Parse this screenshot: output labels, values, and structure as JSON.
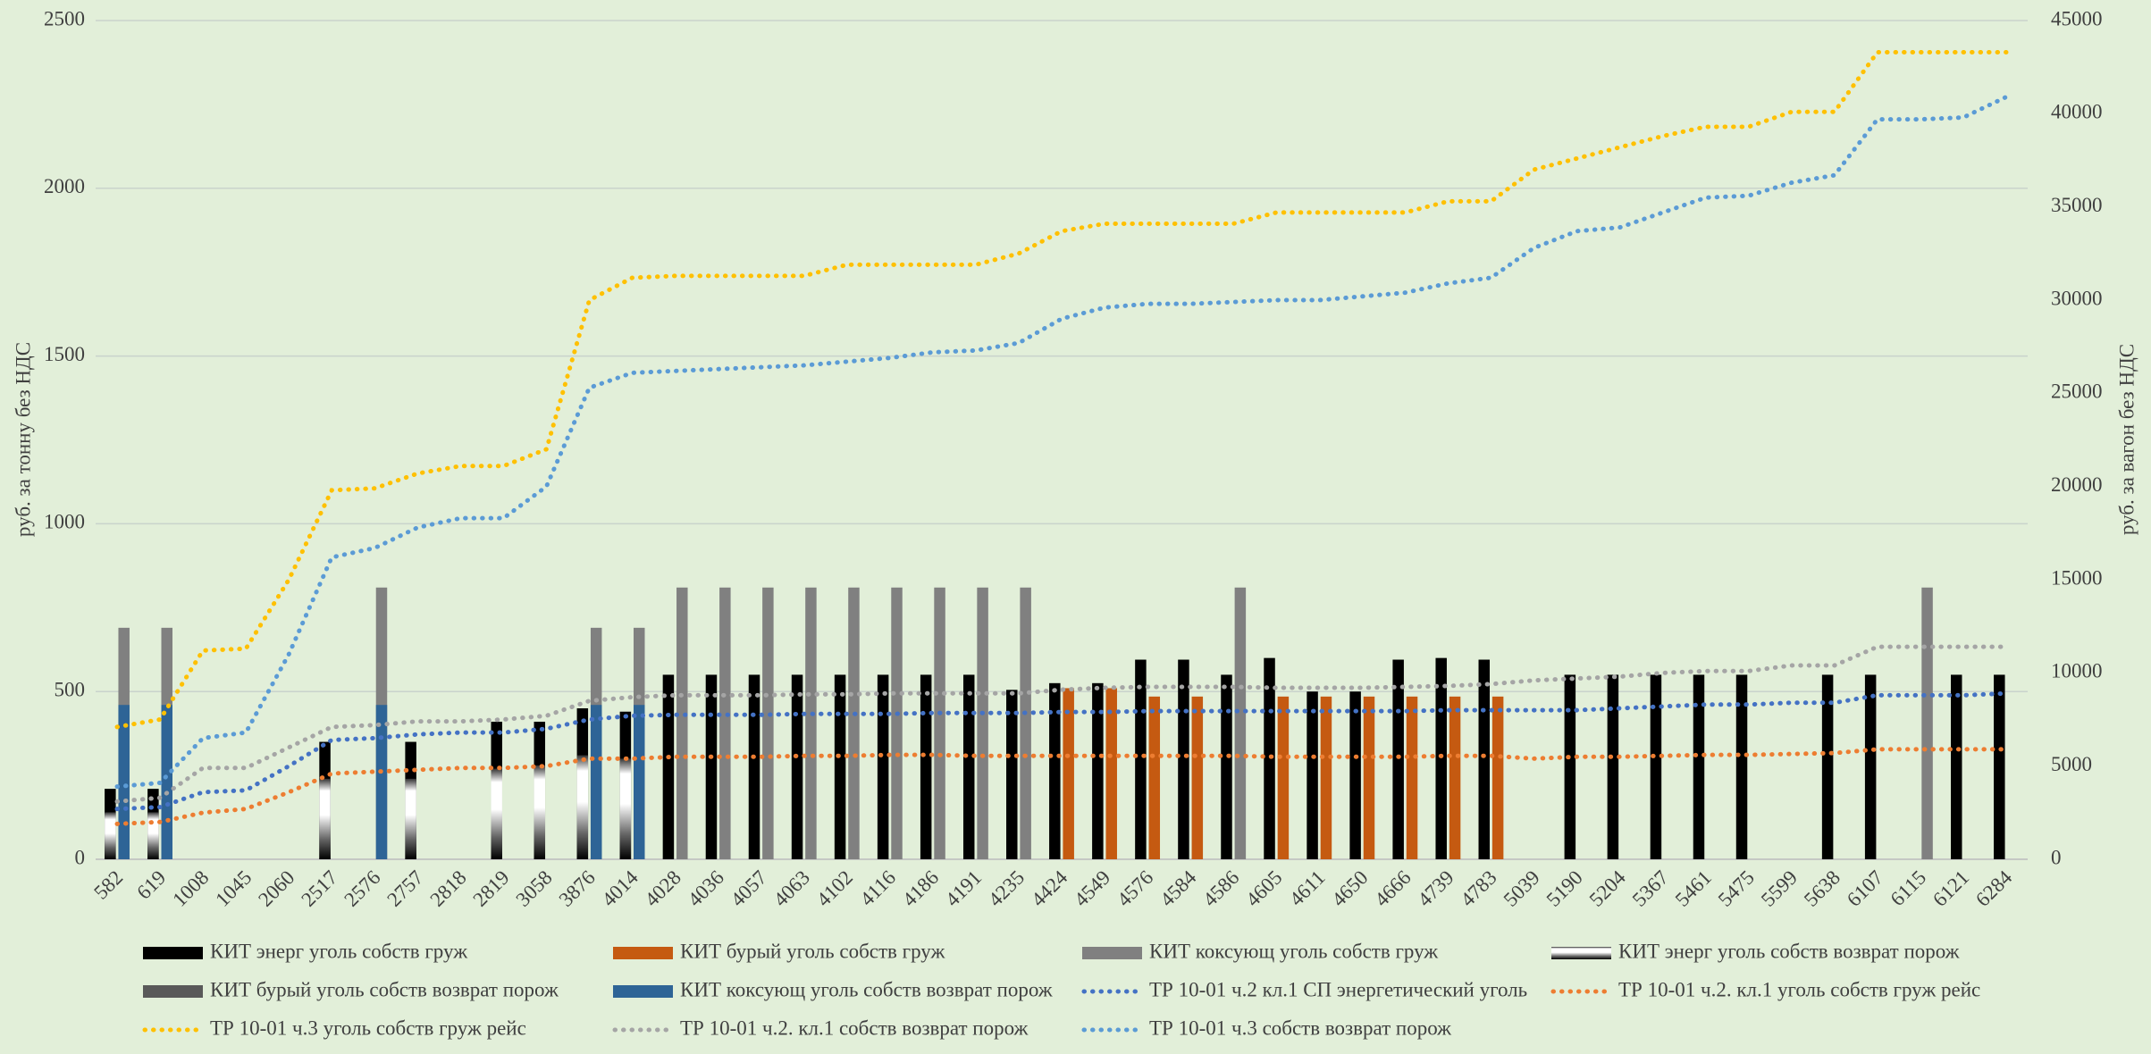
{
  "chart_data": {
    "type": "bar",
    "y_axis_label": "руб. за тонну без НДС",
    "y2_axis_label": "руб. за вагон без НДС",
    "categories": [
      "582",
      "619",
      "1008",
      "1045",
      "2060",
      "2517",
      "2576",
      "2757",
      "2818",
      "2819",
      "3058",
      "3876",
      "4014",
      "4028",
      "4036",
      "4057",
      "4063",
      "4102",
      "4116",
      "4186",
      "4191",
      "4235",
      "4424",
      "4549",
      "4576",
      "4584",
      "4586",
      "4605",
      "4611",
      "4650",
      "4666",
      "4739",
      "4783",
      "5039",
      "5190",
      "5204",
      "5367",
      "5461",
      "5475",
      "5599",
      "5638",
      "6107",
      "6115",
      "6121",
      "6284"
    ],
    "ylim": [
      0,
      2500
    ],
    "yticks": [
      0,
      500,
      1000,
      1500,
      2000,
      2500
    ],
    "y2lim": [
      0,
      45000
    ],
    "y2ticks": [
      0,
      5000,
      10000,
      15000,
      20000,
      25000,
      30000,
      35000,
      40000,
      45000
    ],
    "grid": true,
    "legend": "bottom",
    "series": [
      {
        "name": "КИТ энерг уголь собств груж",
        "kind": "bar",
        "color": "#000000",
        "values": [
          210,
          210,
          null,
          null,
          null,
          350,
          null,
          350,
          null,
          410,
          410,
          450,
          440,
          550,
          550,
          550,
          550,
          550,
          550,
          550,
          550,
          505,
          525,
          525,
          595,
          595,
          550,
          600,
          500,
          500,
          595,
          600,
          595,
          null,
          550,
          550,
          550,
          550,
          550,
          null,
          550,
          550,
          null,
          550,
          550
        ]
      },
      {
        "name": "КИТ бурый уголь собств груж",
        "kind": "bar",
        "color": "#c55a11",
        "values": [
          null,
          null,
          null,
          null,
          null,
          null,
          null,
          null,
          null,
          null,
          null,
          null,
          null,
          null,
          null,
          null,
          null,
          null,
          null,
          null,
          null,
          null,
          510,
          510,
          485,
          485,
          null,
          485,
          485,
          485,
          485,
          485,
          485,
          null,
          null,
          null,
          null,
          null,
          null,
          null,
          null,
          null,
          null,
          null,
          null
        ]
      },
      {
        "name": "КИТ коксующ уголь собств груж",
        "kind": "bar",
        "color": "#808080",
        "values": [
          690,
          690,
          null,
          null,
          null,
          null,
          810,
          null,
          null,
          null,
          null,
          690,
          690,
          810,
          810,
          810,
          810,
          810,
          810,
          810,
          810,
          810,
          null,
          null,
          null,
          null,
          810,
          null,
          null,
          null,
          null,
          null,
          null,
          null,
          null,
          null,
          null,
          null,
          null,
          null,
          null,
          null,
          810,
          null,
          null
        ]
      },
      {
        "name": "КИТ энерг уголь собств возврат порож",
        "kind": "bar",
        "color": "gradient",
        "values": [
          140,
          140,
          null,
          null,
          null,
          240,
          null,
          240,
          null,
          270,
          280,
          310,
          300,
          null,
          null,
          null,
          null,
          null,
          null,
          null,
          null,
          null,
          null,
          null,
          null,
          null,
          null,
          null,
          null,
          null,
          null,
          null,
          null,
          null,
          null,
          null,
          null,
          null,
          null,
          null,
          null,
          null,
          null,
          null,
          null
        ]
      },
      {
        "name": "КИТ бурый уголь собств возврат порож",
        "kind": "bar",
        "color": "#595959",
        "values": [
          null,
          null,
          null,
          null,
          null,
          null,
          null,
          null,
          null,
          null,
          null,
          null,
          null,
          null,
          null,
          null,
          null,
          null,
          null,
          null,
          null,
          null,
          null,
          null,
          null,
          null,
          null,
          null,
          null,
          null,
          null,
          null,
          null,
          null,
          null,
          null,
          null,
          null,
          null,
          null,
          null,
          null,
          null,
          null,
          null
        ]
      },
      {
        "name": "КИТ коксующ уголь собств возврат порож",
        "kind": "bar",
        "color": "#2e6496",
        "values": [
          460,
          460,
          null,
          null,
          null,
          null,
          460,
          null,
          null,
          null,
          null,
          460,
          460,
          null,
          null,
          null,
          null,
          null,
          null,
          null,
          null,
          null,
          null,
          null,
          null,
          null,
          null,
          null,
          null,
          null,
          null,
          null,
          null,
          null,
          null,
          null,
          null,
          null,
          null,
          null,
          null,
          null,
          null,
          null,
          null
        ]
      },
      {
        "name": "ТР 10-01 ч.2 кл.1 СП энергетический уголь",
        "kind": "line",
        "axis": "y2",
        "color": "#4472c4",
        "values": [
          2700,
          2800,
          3600,
          3700,
          5000,
          6400,
          6500,
          6700,
          6800,
          6800,
          7000,
          7500,
          7700,
          7750,
          7750,
          7750,
          7800,
          7800,
          7800,
          7850,
          7850,
          7850,
          7900,
          7900,
          7950,
          7950,
          7950,
          7950,
          7950,
          7950,
          7950,
          8000,
          8000,
          8000,
          8000,
          8100,
          8200,
          8300,
          8300,
          8400,
          8400,
          8800,
          8800,
          8800,
          8900
        ]
      },
      {
        "name": "ТР 10-01 ч.2. кл.1 уголь собств груж рейс",
        "kind": "line",
        "axis": "y2",
        "color": "#ed7d31",
        "values": [
          1900,
          2000,
          2500,
          2700,
          3600,
          4600,
          4700,
          4800,
          4900,
          4900,
          5000,
          5400,
          5400,
          5500,
          5500,
          5500,
          5550,
          5550,
          5600,
          5600,
          5550,
          5550,
          5550,
          5550,
          5550,
          5550,
          5550,
          5500,
          5500,
          5500,
          5500,
          5550,
          5550,
          5400,
          5500,
          5500,
          5550,
          5600,
          5600,
          5650,
          5700,
          5900,
          5900,
          5900,
          5900
        ]
      },
      {
        "name": "ТР 10-01 ч.3 уголь собств груж рейс",
        "kind": "line",
        "axis": "y2",
        "color": "#ffc000",
        "values": [
          7100,
          7500,
          11200,
          11300,
          15000,
          19800,
          19900,
          20700,
          21100,
          21100,
          22000,
          30000,
          31200,
          31300,
          31300,
          31300,
          31300,
          31900,
          31900,
          31900,
          31900,
          32500,
          33700,
          34100,
          34100,
          34100,
          34100,
          34700,
          34700,
          34700,
          34700,
          35300,
          35300,
          37000,
          37600,
          38200,
          38800,
          39300,
          39300,
          40100,
          40100,
          43300,
          43300,
          43300,
          43300
        ]
      },
      {
        "name": "ТР 10-01 ч.2. кл.1 собств возврат порож",
        "kind": "line",
        "axis": "y2",
        "color": "#a5a5a5",
        "values": [
          3100,
          3300,
          4900,
          4900,
          6000,
          7100,
          7200,
          7400,
          7400,
          7500,
          7700,
          8500,
          8700,
          8800,
          8800,
          8800,
          8850,
          8850,
          8900,
          8900,
          8900,
          8900,
          9100,
          9200,
          9250,
          9250,
          9250,
          9200,
          9200,
          9200,
          9250,
          9300,
          9400,
          9600,
          9700,
          9800,
          10000,
          10100,
          10100,
          10400,
          10400,
          11400,
          11400,
          11400,
          11400
        ]
      },
      {
        "name": "ТР 10-01 ч.3 собств возврат порож",
        "kind": "line",
        "axis": "y2",
        "color": "#5b9bd5",
        "values": [
          3900,
          4100,
          6500,
          6800,
          11000,
          16200,
          16700,
          17800,
          18300,
          18300,
          20000,
          25300,
          26100,
          26200,
          26300,
          26400,
          26500,
          26700,
          26900,
          27200,
          27300,
          27700,
          29000,
          29600,
          29800,
          29800,
          29900,
          30000,
          30000,
          30200,
          30400,
          30900,
          31200,
          32800,
          33700,
          33900,
          34700,
          35500,
          35600,
          36300,
          36700,
          39700,
          39700,
          39800,
          40900
        ]
      }
    ]
  }
}
